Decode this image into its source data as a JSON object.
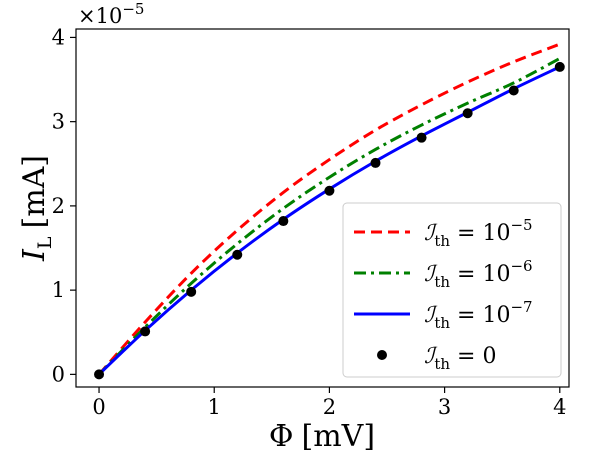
{
  "chart_data": {
    "type": "line",
    "xlabel_symbol": "Φ",
    "xlabel_unit": "[mV]",
    "ylabel_symbol": "I",
    "ylabel_sub": "L",
    "ylabel_unit": "[mA]",
    "xlim": [
      -0.2,
      4.08
    ],
    "ylim": [
      -0.15,
      4.1
    ],
    "x_ticks": [
      0,
      1,
      2,
      3,
      4
    ],
    "y_ticks": [
      0,
      1,
      2,
      3,
      4
    ],
    "y_offset_base": "×10",
    "y_offset_exp": "−5",
    "grid": false,
    "legend_position": "lower-right",
    "series": [
      {
        "name_symbol": "ℐ",
        "name_sub": "th",
        "name_eq": " = 10",
        "name_exp": "−5",
        "style": "dashed",
        "color": "#ff0000",
        "x": [
          0,
          0.4,
          0.8,
          1.2,
          1.6,
          2.0,
          2.4,
          2.8,
          3.2,
          3.6,
          4.0
        ],
        "y": [
          0,
          0.62,
          1.2,
          1.71,
          2.16,
          2.55,
          2.9,
          3.2,
          3.47,
          3.71,
          3.92
        ]
      },
      {
        "name_symbol": "ℐ",
        "name_sub": "th",
        "name_eq": " = 10",
        "name_exp": "−6",
        "style": "dashdot",
        "color": "#008000",
        "x": [
          0,
          0.4,
          0.8,
          1.2,
          1.6,
          2.0,
          2.4,
          2.8,
          3.2,
          3.6,
          4.0
        ],
        "y": [
          0,
          0.56,
          1.08,
          1.55,
          1.97,
          2.34,
          2.67,
          2.96,
          3.22,
          3.46,
          3.75
        ]
      },
      {
        "name_symbol": "ℐ",
        "name_sub": "th",
        "name_eq": " = 10",
        "name_exp": "−7",
        "style": "solid",
        "color": "#0000ff",
        "x": [
          0,
          0.4,
          0.8,
          1.2,
          1.6,
          2.0,
          2.4,
          2.8,
          3.2,
          3.6,
          4.0
        ],
        "y": [
          0,
          0.52,
          1.0,
          1.44,
          1.84,
          2.2,
          2.53,
          2.83,
          3.11,
          3.39,
          3.65
        ]
      },
      {
        "name_symbol": "ℐ",
        "name_sub": "th",
        "name_eq": " = 0",
        "name_exp": "",
        "style": "markers",
        "color": "#000000",
        "x": [
          0,
          0.4,
          0.8,
          1.2,
          1.6,
          2.0,
          2.4,
          2.8,
          3.2,
          3.6,
          4.0
        ],
        "y": [
          0,
          0.51,
          0.98,
          1.42,
          1.82,
          2.18,
          2.51,
          2.81,
          3.1,
          3.37,
          3.65
        ]
      }
    ]
  }
}
